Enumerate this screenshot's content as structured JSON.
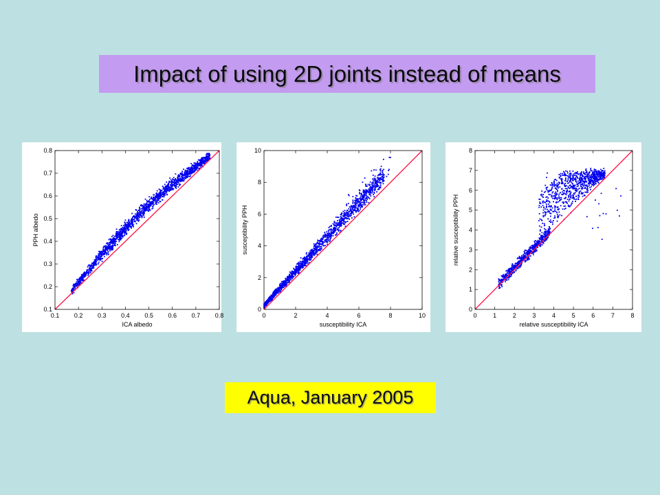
{
  "slide": {
    "title": "Impact of using 2D joints instead of means",
    "caption": "Aqua, January 2005",
    "colors": {
      "background": "#bde0e2",
      "title_box": "#c39bf0",
      "caption_box": "#ffff00",
      "points": "#0000ee",
      "reference_line": "#ff1a4d"
    }
  },
  "chart_data": [
    {
      "type": "scatter",
      "xlabel": "ICA albedo",
      "ylabel": "PPH albedo",
      "xlim": [
        0.1,
        0.8
      ],
      "ylim": [
        0.1,
        0.8
      ],
      "x_ticks": [
        "0.1",
        "0.2",
        "0.3",
        "0.4",
        "0.5",
        "0.6",
        "0.7",
        "0.8"
      ],
      "y_ticks": [
        "0.1",
        "0.2",
        "0.3",
        "0.4",
        "0.5",
        "0.6",
        "0.7",
        "0.8"
      ],
      "reference_line": "y = x",
      "series": [
        {
          "values": [
            [
              0.18,
              0.18
            ],
            [
              0.2,
              0.22
            ],
            [
              0.25,
              0.28
            ],
            [
              0.3,
              0.34
            ],
            [
              0.35,
              0.4
            ],
            [
              0.4,
              0.45
            ],
            [
              0.45,
              0.5
            ],
            [
              0.5,
              0.55
            ],
            [
              0.55,
              0.6
            ],
            [
              0.6,
              0.64
            ],
            [
              0.65,
              0.68
            ],
            [
              0.7,
              0.72
            ],
            [
              0.75,
              0.77
            ]
          ]
        }
      ]
    },
    {
      "type": "scatter",
      "xlabel": "susceptibility ICA",
      "ylabel": "susceptibility PPH",
      "xlim": [
        0,
        10
      ],
      "ylim": [
        0,
        10
      ],
      "x_ticks": [
        "0",
        "2",
        "4",
        "6",
        "8",
        "10"
      ],
      "y_ticks": [
        "0",
        "2",
        "4",
        "6",
        "8",
        "10"
      ],
      "reference_line": "y = x",
      "series": [
        {
          "values": [
            [
              0.3,
              0.4
            ],
            [
              1,
              1.2
            ],
            [
              2,
              2.2
            ],
            [
              3,
              3.3
            ],
            [
              4,
              4.3
            ],
            [
              5,
              5.3
            ],
            [
              6,
              6.5
            ],
            [
              7,
              7.6
            ],
            [
              8,
              8.8
            ]
          ]
        }
      ]
    },
    {
      "type": "scatter",
      "xlabel": "relative susceptibility ICA",
      "ylabel": "relative susceptibility PPH",
      "xlim": [
        0,
        8
      ],
      "ylim": [
        0,
        8
      ],
      "x_ticks": [
        "0",
        "1",
        "2",
        "3",
        "4",
        "5",
        "6",
        "7",
        "8"
      ],
      "y_ticks": [
        "0",
        "1",
        "2",
        "3",
        "4",
        "5",
        "6",
        "7",
        "8"
      ],
      "reference_line": "y = x",
      "series": [
        {
          "values": [
            [
              1.3,
              1.3
            ],
            [
              2,
              2.1
            ],
            [
              3,
              3.1
            ],
            [
              3.5,
              3.9
            ],
            [
              4,
              4.6
            ],
            [
              4.5,
              5.3
            ],
            [
              5,
              5.9
            ],
            [
              5.5,
              6.3
            ],
            [
              6,
              6.6
            ],
            [
              6.5,
              6.8
            ]
          ]
        }
      ]
    }
  ]
}
